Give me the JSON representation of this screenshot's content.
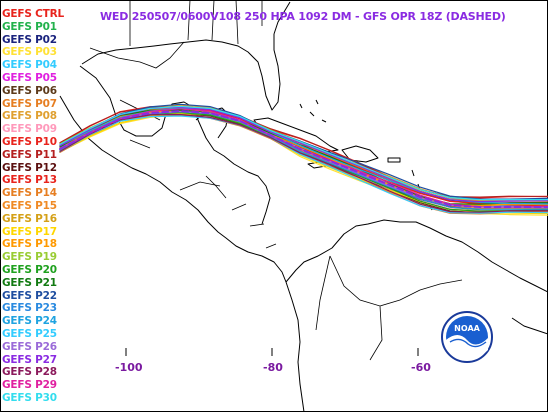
{
  "title": "WED 250507/0600V108  250 HPA 1092 DM - GFS OPR 18Z (DASHED)",
  "legend": [
    {
      "label": "GEFS CTRL",
      "color": "#e8231c"
    },
    {
      "label": "GEFS P01",
      "color": "#22b14c"
    },
    {
      "label": "GEFS P02",
      "color": "#1a237e"
    },
    {
      "label": "GEFS P03",
      "color": "#ffe135"
    },
    {
      "label": "GEFS P04",
      "color": "#33ccff"
    },
    {
      "label": "GEFS P05",
      "color": "#e020e0"
    },
    {
      "label": "GEFS P06",
      "color": "#5c3a1a"
    },
    {
      "label": "GEFS P07",
      "color": "#e67e22"
    },
    {
      "label": "GEFS P08",
      "color": "#e0a030"
    },
    {
      "label": "GEFS P09",
      "color": "#ff99bb"
    },
    {
      "label": "GEFS P10",
      "color": "#e8231c"
    },
    {
      "label": "GEFS P11",
      "color": "#b52020"
    },
    {
      "label": "GEFS P12",
      "color": "#5c1010"
    },
    {
      "label": "GEFS P13",
      "color": "#e8231c"
    },
    {
      "label": "GEFS P14",
      "color": "#e67e22"
    },
    {
      "label": "GEFS P15",
      "color": "#f08a24"
    },
    {
      "label": "GEFS P16",
      "color": "#d4a017"
    },
    {
      "label": "GEFS P17",
      "color": "#ffd700"
    },
    {
      "label": "GEFS P18",
      "color": "#ff9900"
    },
    {
      "label": "GEFS P19",
      "color": "#99cc33"
    },
    {
      "label": "GEFS P20",
      "color": "#1fa11f"
    },
    {
      "label": "GEFS P21",
      "color": "#127a12"
    },
    {
      "label": "GEFS P22",
      "color": "#1f4ea0"
    },
    {
      "label": "GEFS P23",
      "color": "#2a8ae0"
    },
    {
      "label": "GEFS P24",
      "color": "#1fa3e0"
    },
    {
      "label": "GEFS P25",
      "color": "#33ccff"
    },
    {
      "label": "GEFS P26",
      "color": "#9a6ad8"
    },
    {
      "label": "GEFS P27",
      "color": "#8a2be2"
    },
    {
      "label": "GEFS P28",
      "color": "#8b1a5c"
    },
    {
      "label": "GEFS P29",
      "color": "#e020a0"
    },
    {
      "label": "GEFS P30",
      "color": "#33ddee"
    }
  ],
  "longitude_labels": [
    "-100",
    "-80",
    "-60"
  ],
  "logo": {
    "text": "NOAA",
    "icon": "noaa-logo-icon"
  },
  "colors": {
    "coastline": "#000000",
    "title": "#8a2be2",
    "axis_labels": "#7a1aa0",
    "frame": "#000000"
  }
}
